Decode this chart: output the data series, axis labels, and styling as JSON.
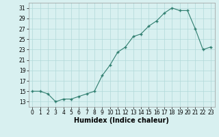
{
  "x": [
    0,
    1,
    2,
    3,
    4,
    5,
    6,
    7,
    8,
    9,
    10,
    11,
    12,
    13,
    14,
    15,
    16,
    17,
    18,
    19,
    20,
    21,
    22,
    23
  ],
  "y": [
    15,
    15,
    14.5,
    13,
    13.5,
    13.5,
    14,
    14.5,
    15,
    18,
    20,
    22.5,
    23.5,
    25.5,
    26,
    27.5,
    28.5,
    30,
    31,
    30.5,
    30.5,
    27,
    23,
    23.5
  ],
  "line_color": "#2e7d6e",
  "marker": "+",
  "bg_color": "#d8f0f0",
  "grid_color": "#b0d8d8",
  "xlabel": "Humidex (Indice chaleur)",
  "xlim": [
    -0.5,
    23.5
  ],
  "ylim": [
    12,
    32
  ],
  "yticks": [
    13,
    15,
    17,
    19,
    21,
    23,
    25,
    27,
    29,
    31
  ],
  "xticks": [
    0,
    1,
    2,
    3,
    4,
    5,
    6,
    7,
    8,
    9,
    10,
    11,
    12,
    13,
    14,
    15,
    16,
    17,
    18,
    19,
    20,
    21,
    22,
    23
  ],
  "tick_fontsize": 5.5,
  "xlabel_fontsize": 7,
  "figsize": [
    3.2,
    2.0
  ],
  "dpi": 100
}
